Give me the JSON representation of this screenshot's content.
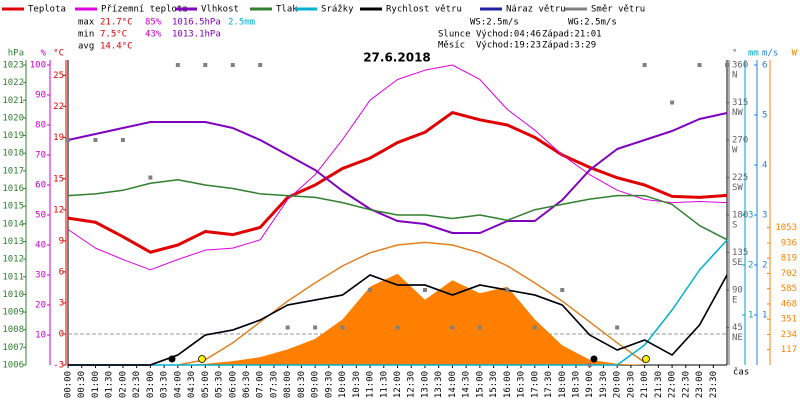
{
  "chart_data": {
    "type": "line",
    "title": "27.6.2018",
    "stats": {
      "max": {
        "label": "max",
        "values": [
          "21.7°C",
          "85%",
          "1016.5hPa",
          "2.5mm"
        ]
      },
      "min": {
        "label": "min",
        "values": [
          "7.5°C",
          "43%",
          "1013.1hPa"
        ]
      },
      "avg": {
        "label": "avg",
        "values": [
          "14.4°C"
        ]
      }
    },
    "wind_info": [
      "WS:2.5m/s",
      "WG:2.5m/s"
    ],
    "sun_info": [
      "Slunce",
      "Východ:04:46",
      "Západ:21:01"
    ],
    "moon_info": [
      "Měsíc",
      "Východ:19:23",
      "Západ:3:29"
    ],
    "x_label": "čas",
    "xlim": [
      0,
      24
    ],
    "xticks": [
      {
        "value": 0,
        "label": "00:00"
      },
      {
        "value": 0.5,
        "label": "00:30"
      },
      {
        "value": 1,
        "label": "01:00"
      },
      {
        "value": 1.5,
        "label": "01:30"
      },
      {
        "value": 2,
        "label": "02:00"
      },
      {
        "value": 2.5,
        "label": "02:30"
      },
      {
        "value": 3,
        "label": "03:00"
      },
      {
        "value": 3.5,
        "label": "03:30"
      },
      {
        "value": 4,
        "label": "04:00"
      },
      {
        "value": 4.5,
        "label": "04:30"
      },
      {
        "value": 5,
        "label": "05:00"
      },
      {
        "value": 5.5,
        "label": "05:30"
      },
      {
        "value": 6,
        "label": "06:00"
      },
      {
        "value": 6.5,
        "label": "06:30"
      },
      {
        "value": 7,
        "label": "07:00"
      },
      {
        "value": 7.5,
        "label": "07:30"
      },
      {
        "value": 8,
        "label": "08:00"
      },
      {
        "value": 8.5,
        "label": "08:30"
      },
      {
        "value": 9,
        "label": "09:00"
      },
      {
        "value": 9.5,
        "label": "09:30"
      },
      {
        "value": 10,
        "label": "10:00"
      },
      {
        "value": 10.5,
        "label": "10:30"
      },
      {
        "value": 11,
        "label": "11:00"
      },
      {
        "value": 11.5,
        "label": "11:30"
      },
      {
        "value": 12,
        "label": "12:00"
      },
      {
        "value": 12.5,
        "label": "12:30"
      },
      {
        "value": 13,
        "label": "13:00"
      },
      {
        "value": 13.5,
        "label": "13:30"
      },
      {
        "value": 14,
        "label": "14:00"
      },
      {
        "value": 14.5,
        "label": "14:30"
      },
      {
        "value": 15,
        "label": "15:00"
      },
      {
        "value": 15.5,
        "label": "15:30"
      },
      {
        "value": 16,
        "label": "16:00"
      },
      {
        "value": 16.5,
        "label": "16:30"
      },
      {
        "value": 17,
        "label": "17:00"
      },
      {
        "value": 17.5,
        "label": "17:30"
      },
      {
        "value": 18,
        "label": "18:00"
      },
      {
        "value": 18.5,
        "label": "18:30"
      },
      {
        "value": 19,
        "label": "19:00"
      },
      {
        "value": 19.5,
        "label": "19:30"
      },
      {
        "value": 20,
        "label": "20:00"
      },
      {
        "value": 20.5,
        "label": "20:30"
      },
      {
        "value": 21,
        "label": "21:00"
      },
      {
        "value": 21.5,
        "label": "21:30"
      },
      {
        "value": 22,
        "label": "22:00"
      },
      {
        "value": 22.5,
        "label": "22:30"
      },
      {
        "value": 23,
        "label": "23:00"
      },
      {
        "value": 23.5,
        "label": "23:30"
      }
    ],
    "axes": {
      "press": {
        "unit": "hPa",
        "color": "#308030",
        "lim": [
          1006,
          1023
        ],
        "ticks": [
          1006,
          1007,
          1008,
          1009,
          1010,
          1011,
          1012,
          1013,
          1014,
          1015,
          1016,
          1017,
          1018,
          1019,
          1020,
          1021,
          1022,
          1023
        ]
      },
      "hum": {
        "unit": "%",
        "color": "#d000d0",
        "lim": [
          0,
          100
        ],
        "ticks": [
          10,
          20,
          30,
          40,
          50,
          60,
          70,
          80,
          90,
          100
        ]
      },
      "temp": {
        "unit": "°C",
        "color": "#e00000",
        "lim": [
          -3,
          26
        ],
        "ticks": [
          -3,
          0,
          3,
          6,
          9,
          12,
          15,
          19,
          22,
          25
        ]
      },
      "deg": {
        "unit": "°",
        "color": "#606060",
        "lim": [
          0,
          360
        ],
        "ticks": [
          45,
          90,
          135,
          180,
          225,
          270,
          315,
          360
        ],
        "directions": [
          "NE",
          "E",
          "SE",
          "S",
          "SW",
          "W",
          "NW",
          "N"
        ]
      },
      "mm": {
        "unit": "mm",
        "color": "#00a0c0",
        "lim": [
          0,
          6
        ],
        "ticks": [
          1,
          2,
          3
        ]
      },
      "ms": {
        "unit": "m/s",
        "color": "#2080e0",
        "lim": [
          0,
          6
        ],
        "ticks": [
          1,
          2,
          3,
          4,
          5,
          6
        ]
      },
      "w": {
        "unit": "W",
        "color": "#ff8000",
        "lim": [
          0,
          2300
        ],
        "ticks": [
          117,
          234,
          351,
          468,
          585,
          702,
          819,
          936,
          1053
        ]
      }
    },
    "x": [
      0,
      1,
      2,
      3,
      4,
      5,
      6,
      7,
      8,
      9,
      10,
      11,
      12,
      13,
      14,
      15,
      16,
      17,
      18,
      19,
      20,
      21,
      22,
      23,
      24
    ],
    "series": [
      {
        "style": "area",
        "axis": "w",
        "color": "#ff8000",
        "values": [
          0,
          0,
          0,
          0,
          0,
          10,
          30,
          60,
          120,
          200,
          350,
          600,
          700,
          500,
          650,
          550,
          600,
          350,
          150,
          40,
          10,
          0,
          0,
          0,
          0
        ]
      },
      {
        "style": "line",
        "axis": "w",
        "color": "#e08020",
        "values": [
          null,
          null,
          null,
          null,
          0,
          40,
          170,
          330,
          490,
          630,
          760,
          860,
          920,
          940,
          920,
          860,
          760,
          630,
          490,
          330,
          170,
          20,
          null,
          null,
          null
        ]
      },
      {
        "name": "Teplota",
        "style": "line",
        "axis": "temp",
        "color": "#e00000",
        "width": 3,
        "values": [
          11.2,
          10.8,
          9.4,
          7.9,
          8.6,
          9.9,
          9.6,
          10.3,
          13.2,
          14.4,
          16.0,
          17.0,
          18.5,
          19.5,
          21.4,
          20.7,
          20.2,
          19.0,
          17.3,
          16.1,
          15.1,
          14.4,
          13.3,
          13.2,
          13.4
        ]
      },
      {
        "name": "Přízemní teplota",
        "style": "line",
        "axis": "temp",
        "color": "#e000e0",
        "width": 1,
        "values": [
          10.1,
          8.3,
          7.2,
          6.2,
          7.2,
          8.1,
          8.3,
          9.1,
          13.0,
          15.4,
          18.8,
          22.6,
          24.6,
          25.5,
          26.0,
          24.6,
          21.7,
          19.7,
          17.3,
          15.4,
          13.9,
          13.0,
          12.7,
          12.8,
          12.7
        ]
      },
      {
        "name": "Vlhkost",
        "style": "line",
        "axis": "hum",
        "color": "#8000c0",
        "width": 2,
        "values": [
          75,
          77,
          79,
          81,
          81,
          81,
          79,
          75,
          70,
          65,
          58,
          52,
          48,
          47,
          44,
          44,
          48,
          48,
          55,
          65,
          72,
          75,
          78,
          82,
          84
        ]
      },
      {
        "name": "Tlak",
        "style": "line",
        "axis": "press",
        "color": "#308030",
        "width": 1.5,
        "values": [
          1015.6,
          1015.7,
          1015.9,
          1016.3,
          1016.5,
          1016.2,
          1016.0,
          1015.7,
          1015.6,
          1015.5,
          1015.2,
          1014.8,
          1014.5,
          1014.5,
          1014.3,
          1014.5,
          1014.2,
          1014.8,
          1015.1,
          1015.4,
          1015.6,
          1015.6,
          1015.1,
          1013.9,
          1013.1
        ]
      },
      {
        "name": "Srážky",
        "style": "line",
        "axis": "mm",
        "color": "#00b0d0",
        "width": 1.5,
        "values": [
          0,
          0,
          0,
          0,
          0,
          0,
          0,
          0,
          0,
          0,
          0,
          0,
          0,
          0,
          0,
          0,
          0,
          0,
          0,
          0,
          0,
          0.4,
          1.1,
          1.9,
          2.5
        ]
      },
      {
        "name": "Náraz větru",
        "style": "line",
        "axis": "ms",
        "color": "#2020a0",
        "width": 1.5,
        "values": [
          0,
          0,
          0,
          0,
          0.2,
          0.6,
          0.7,
          0.9,
          1.2,
          1.3,
          1.4,
          1.8,
          1.6,
          1.6,
          1.4,
          1.6,
          1.5,
          1.4,
          1.2,
          0.6,
          0.3,
          0.5,
          0.2,
          0.8,
          1.8
        ]
      },
      {
        "name": "Rychlost větru",
        "style": "line",
        "axis": "ms",
        "color": "#000000",
        "width": 1.5,
        "values": [
          0,
          0,
          0,
          0,
          0.2,
          0.6,
          0.7,
          0.9,
          1.2,
          1.3,
          1.4,
          1.8,
          1.6,
          1.6,
          1.4,
          1.6,
          1.5,
          1.4,
          1.2,
          0.6,
          0.3,
          0.5,
          0.2,
          0.8,
          1.8
        ]
      },
      {
        "name": "Směr větru",
        "style": "points",
        "axis": "deg",
        "color": "#808080",
        "values": [
          270,
          270,
          270,
          225,
          360,
          360,
          360,
          360,
          45,
          45,
          45,
          90,
          45,
          90,
          45,
          45,
          90,
          45,
          90,
          0,
          45,
          360,
          315,
          360,
          360
        ]
      }
    ]
  }
}
